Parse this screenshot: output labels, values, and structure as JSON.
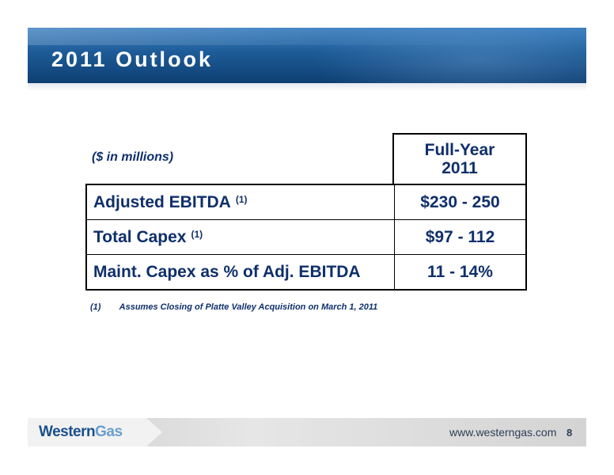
{
  "slide": {
    "title": "2011 Outlook",
    "units_label": "($ in millions)",
    "column_header": [
      "Full-Year",
      "2011"
    ],
    "rows": [
      {
        "label": "Adjusted EBITDA",
        "note": "(1)",
        "value": "$230 - 250"
      },
      {
        "label": "Total Capex",
        "note": "(1)",
        "value": "$97 - 112"
      },
      {
        "label": "Maint. Capex as % of Adj. EBITDA",
        "note": "",
        "value": "11 - 14%"
      }
    ],
    "footnote": {
      "marker": "(1)",
      "text": "Assumes Closing of Platte Valley Acquisition on March 1, 2011"
    }
  },
  "footer": {
    "logo_word1": "Western",
    "logo_word2": "Gas",
    "url": "www.westerngas.com",
    "page_number": "8"
  }
}
